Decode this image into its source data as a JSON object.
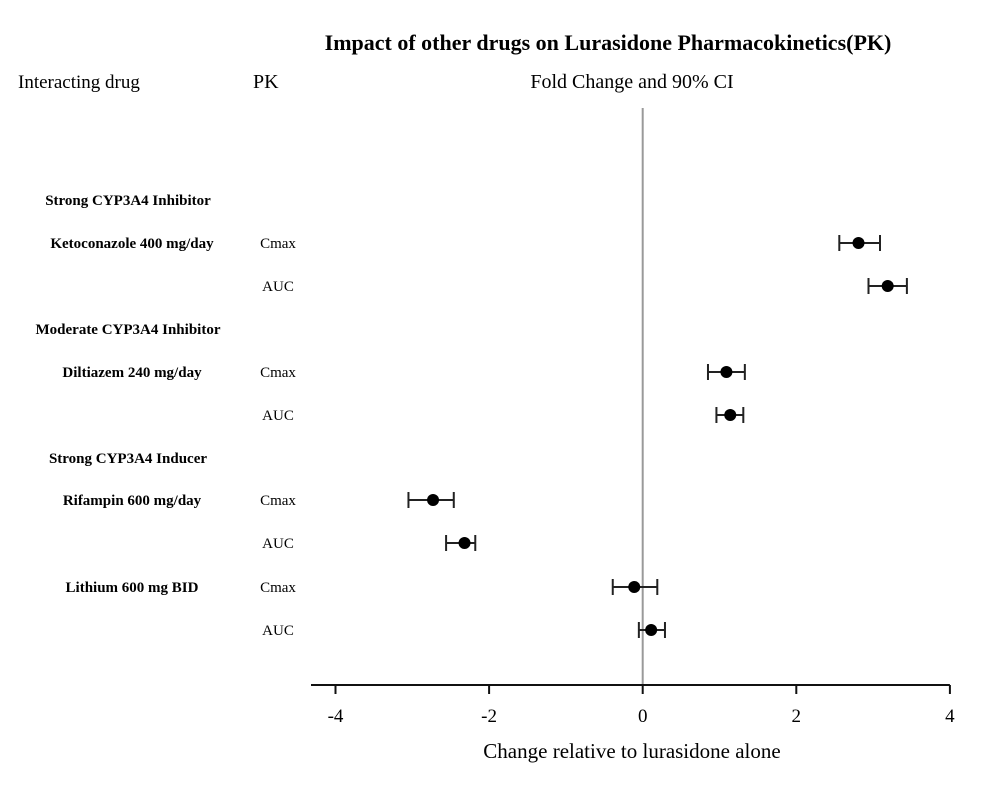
{
  "chart_data": {
    "type": "forest",
    "title": "Impact of other drugs on Lurasidone Pharmacokinetics(PK)",
    "column_headers": {
      "drug": "Interacting drug",
      "pk": "PK",
      "effect": "Fold Change and 90% CI"
    },
    "xlabel": "Change relative to lurasidone alone",
    "xlim": [
      -4.4,
      4
    ],
    "xticks": [
      -4,
      -2,
      0,
      2,
      4
    ],
    "xtick_labels": [
      "-4",
      "-2",
      "0",
      "2",
      "4"
    ],
    "reference_line": 0,
    "groups": [
      {
        "label": "Strong CYP3A4 Inhibitor",
        "drugs": [
          {
            "name": "Ketoconazole 400 mg/day",
            "rows": [
              {
                "pk": "Cmax",
                "value": 2.81,
                "ci": [
                  2.56,
                  3.09
                ]
              },
              {
                "pk": "AUC",
                "value": 3.19,
                "ci": [
                  2.94,
                  3.44
                ]
              }
            ]
          }
        ]
      },
      {
        "label": "Moderate CYP3A4 Inhibitor",
        "drugs": [
          {
            "name": "Diltiazem 240 mg/day",
            "rows": [
              {
                "pk": "Cmax",
                "value": 1.09,
                "ci": [
                  0.85,
                  1.33
                ]
              },
              {
                "pk": "AUC",
                "value": 1.14,
                "ci": [
                  0.96,
                  1.31
                ]
              }
            ]
          }
        ]
      },
      {
        "label": "Strong CYP3A4 Inducer",
        "drugs": [
          {
            "name": "Rifampin 600 mg/day",
            "rows": [
              {
                "pk": "Cmax",
                "value": -2.73,
                "ci": [
                  -3.05,
                  -2.46
                ]
              },
              {
                "pk": "AUC",
                "value": -2.32,
                "ci": [
                  -2.56,
                  -2.18
                ]
              }
            ]
          }
        ]
      },
      {
        "label": "",
        "drugs": [
          {
            "name": "Lithium 600 mg BID",
            "rows": [
              {
                "pk": "Cmax",
                "value": -0.11,
                "ci": [
                  -0.39,
                  0.19
                ]
              },
              {
                "pk": "AUC",
                "value": 0.11,
                "ci": [
                  -0.05,
                  0.29
                ]
              }
            ]
          }
        ]
      }
    ]
  }
}
